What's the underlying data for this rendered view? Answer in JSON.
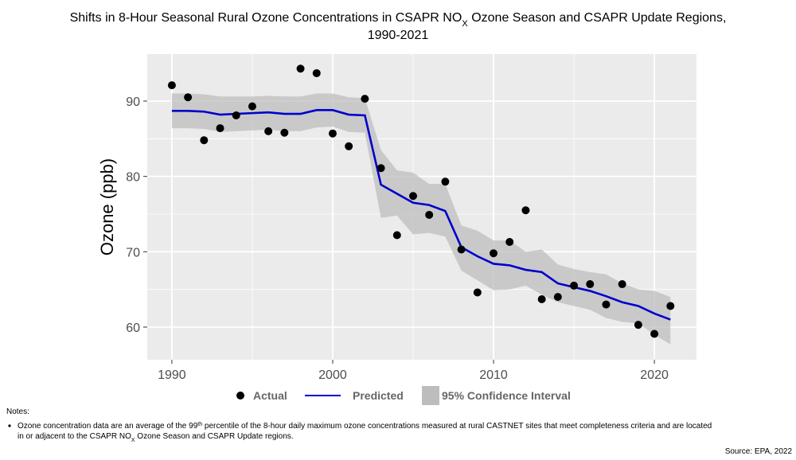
{
  "chart_data": {
    "type": "line",
    "title": [
      [
        {
          "text": "Shifts in 8-Hour Seasonal Rural Ozone Concentrations in CSAPR NO"
        },
        {
          "text": "X",
          "style": "sub"
        },
        {
          "text": " Ozone Season and CSAPR Update Regions,"
        }
      ],
      [
        {
          "text": "1990-2021"
        }
      ]
    ],
    "y_label": "Ozone (ppb)",
    "x": [
      1990,
      1991,
      1992,
      1993,
      1994,
      1995,
      1996,
      1997,
      1998,
      1999,
      2000,
      2001,
      2002,
      2003,
      2004,
      2005,
      2006,
      2007,
      2008,
      2009,
      2010,
      2011,
      2012,
      2013,
      2014,
      2015,
      2016,
      2017,
      2018,
      2019,
      2020,
      2021
    ],
    "series": [
      {
        "name": "Actual",
        "type": "scatter",
        "color": "#000000",
        "values": [
          92.1,
          90.5,
          84.8,
          86.4,
          88.1,
          89.3,
          86.0,
          85.8,
          94.3,
          93.7,
          85.7,
          84.0,
          90.3,
          81.1,
          72.2,
          77.4,
          74.9,
          79.3,
          70.3,
          64.6,
          69.8,
          71.3,
          75.5,
          63.7,
          64.0,
          65.5,
          65.7,
          63.0,
          65.7,
          60.3,
          59.1,
          62.8
        ]
      },
      {
        "name": "Predicted",
        "type": "line",
        "color": "#0000cc",
        "values": [
          88.7,
          88.7,
          88.6,
          88.2,
          88.3,
          88.4,
          88.5,
          88.3,
          88.3,
          88.8,
          88.8,
          88.2,
          88.1,
          78.9,
          77.7,
          76.5,
          76.2,
          75.4,
          70.6,
          69.4,
          68.4,
          68.2,
          67.6,
          67.3,
          65.8,
          65.3,
          64.8,
          64.1,
          63.3,
          62.8,
          61.8,
          61.0
        ]
      },
      {
        "name": "95% Confidence Interval",
        "type": "band",
        "color": "#bdbdbd",
        "upper": [
          91.0,
          91.0,
          90.9,
          90.6,
          90.6,
          90.6,
          90.7,
          90.6,
          90.6,
          91.0,
          91.0,
          90.5,
          90.4,
          83.5,
          80.8,
          80.5,
          79.0,
          79.0,
          73.5,
          72.8,
          71.5,
          71.5,
          70.0,
          70.3,
          68.3,
          67.7,
          67.3,
          67.0,
          65.8,
          65.0,
          64.8,
          64.0
        ],
        "lower": [
          86.4,
          86.4,
          86.3,
          85.9,
          86.0,
          86.1,
          86.2,
          86.0,
          86.0,
          86.5,
          86.6,
          85.9,
          85.8,
          74.5,
          74.8,
          72.3,
          72.5,
          72.0,
          67.5,
          66.2,
          64.9,
          65.0,
          65.5,
          64.3,
          63.3,
          62.8,
          62.3,
          61.2,
          60.7,
          60.5,
          59.0,
          57.7
        ]
      }
    ],
    "xlim": [
      1988.47,
      2022.62
    ],
    "ylim": [
      55.67,
      96.23
    ],
    "xticks": [
      1990,
      2000,
      2010,
      2020
    ],
    "yticks": [
      60,
      70,
      80,
      90
    ],
    "grid": true,
    "legend_position": "bottom",
    "notes_label": "Notes:",
    "notes": [
      [
        {
          "text": "Ozone concentration data are an average of the 99"
        },
        {
          "text": "th",
          "style": "sup"
        },
        {
          "text": " percentile of the 8-hour daily maximum ozone concentrations measured at rural CASTNET sites that meet completeness criteria and are located"
        }
      ],
      [
        {
          "text": "in or adjacent to the CSAPR NO"
        },
        {
          "text": "X",
          "style": "sub"
        },
        {
          "text": " Ozone Season and CSAPR Update regions."
        }
      ]
    ],
    "source": "Source: EPA, 2022"
  }
}
